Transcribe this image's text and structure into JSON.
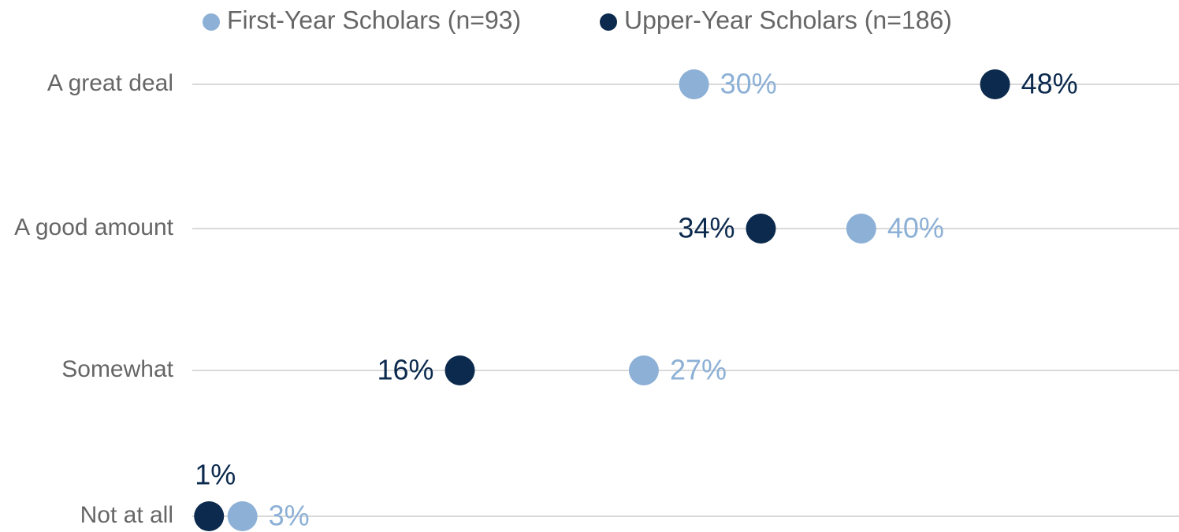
{
  "chart_data": {
    "type": "dot",
    "categories": [
      "A great deal",
      "A good amount",
      "Somewhat",
      "Not at all"
    ],
    "series": [
      {
        "name": "First-Year Scholars (n=93)",
        "color": "#8cb0d6",
        "values": [
          30,
          40,
          27,
          3
        ],
        "value_labels": [
          "30%",
          "40%",
          "27%",
          "3%"
        ]
      },
      {
        "name": "Upper-Year Scholars (n=186)",
        "color": "#0c2a4e",
        "values": [
          48,
          34,
          16,
          1
        ],
        "value_labels": [
          "48%",
          "34%",
          "16%",
          "1%"
        ]
      }
    ],
    "xlim": [
      0,
      59
    ],
    "grid": true,
    "legend": "top"
  }
}
